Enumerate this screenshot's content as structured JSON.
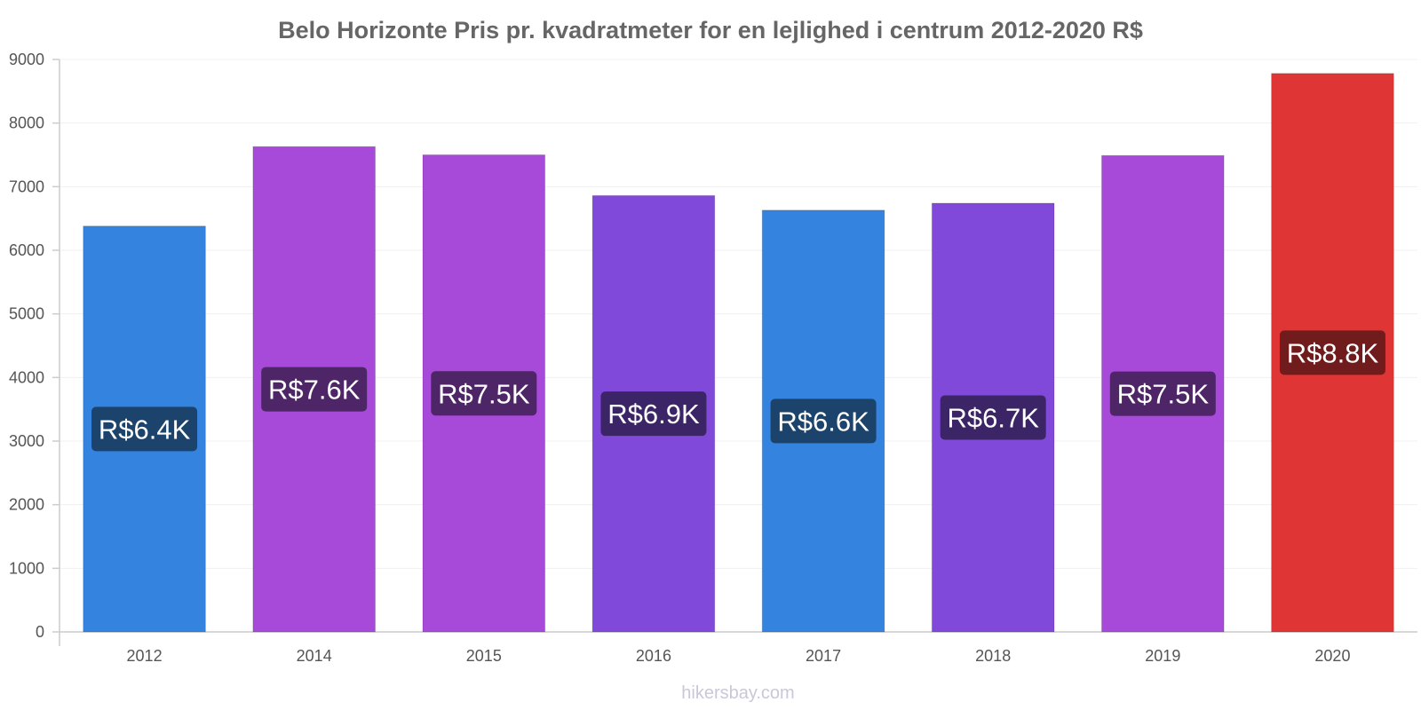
{
  "chart_data": {
    "type": "bar",
    "title": "Belo Horizonte Pris pr. kvadratmeter for en lejlighed i centrum 2012-2020 R$",
    "categories": [
      "2012",
      "2014",
      "2015",
      "2016",
      "2017",
      "2018",
      "2019",
      "2020"
    ],
    "values": [
      6380,
      7630,
      7500,
      6860,
      6630,
      6740,
      7490,
      8780
    ],
    "data_labels": [
      "R$6.4K",
      "R$7.6K",
      "R$7.5K",
      "R$6.9K",
      "R$6.6K",
      "R$6.7K",
      "R$7.5K",
      "R$8.8K"
    ],
    "bar_colors": [
      "#3483de",
      "#a749d9",
      "#a749d9",
      "#8049d9",
      "#3483de",
      "#8049d9",
      "#a749d9",
      "#e03535"
    ],
    "label_bg_colors": [
      "#1c436b",
      "#4e2566",
      "#4e2566",
      "#3c2566",
      "#1c436b",
      "#3c2566",
      "#4e2566",
      "#711c1c"
    ],
    "ylim": [
      0,
      9000
    ],
    "yticks": [
      0,
      1000,
      2000,
      3000,
      4000,
      5000,
      6000,
      7000,
      8000,
      9000
    ],
    "xlabel": "",
    "ylabel": "",
    "grid": true,
    "legend": "none"
  },
  "watermark": "hikersbay.com"
}
